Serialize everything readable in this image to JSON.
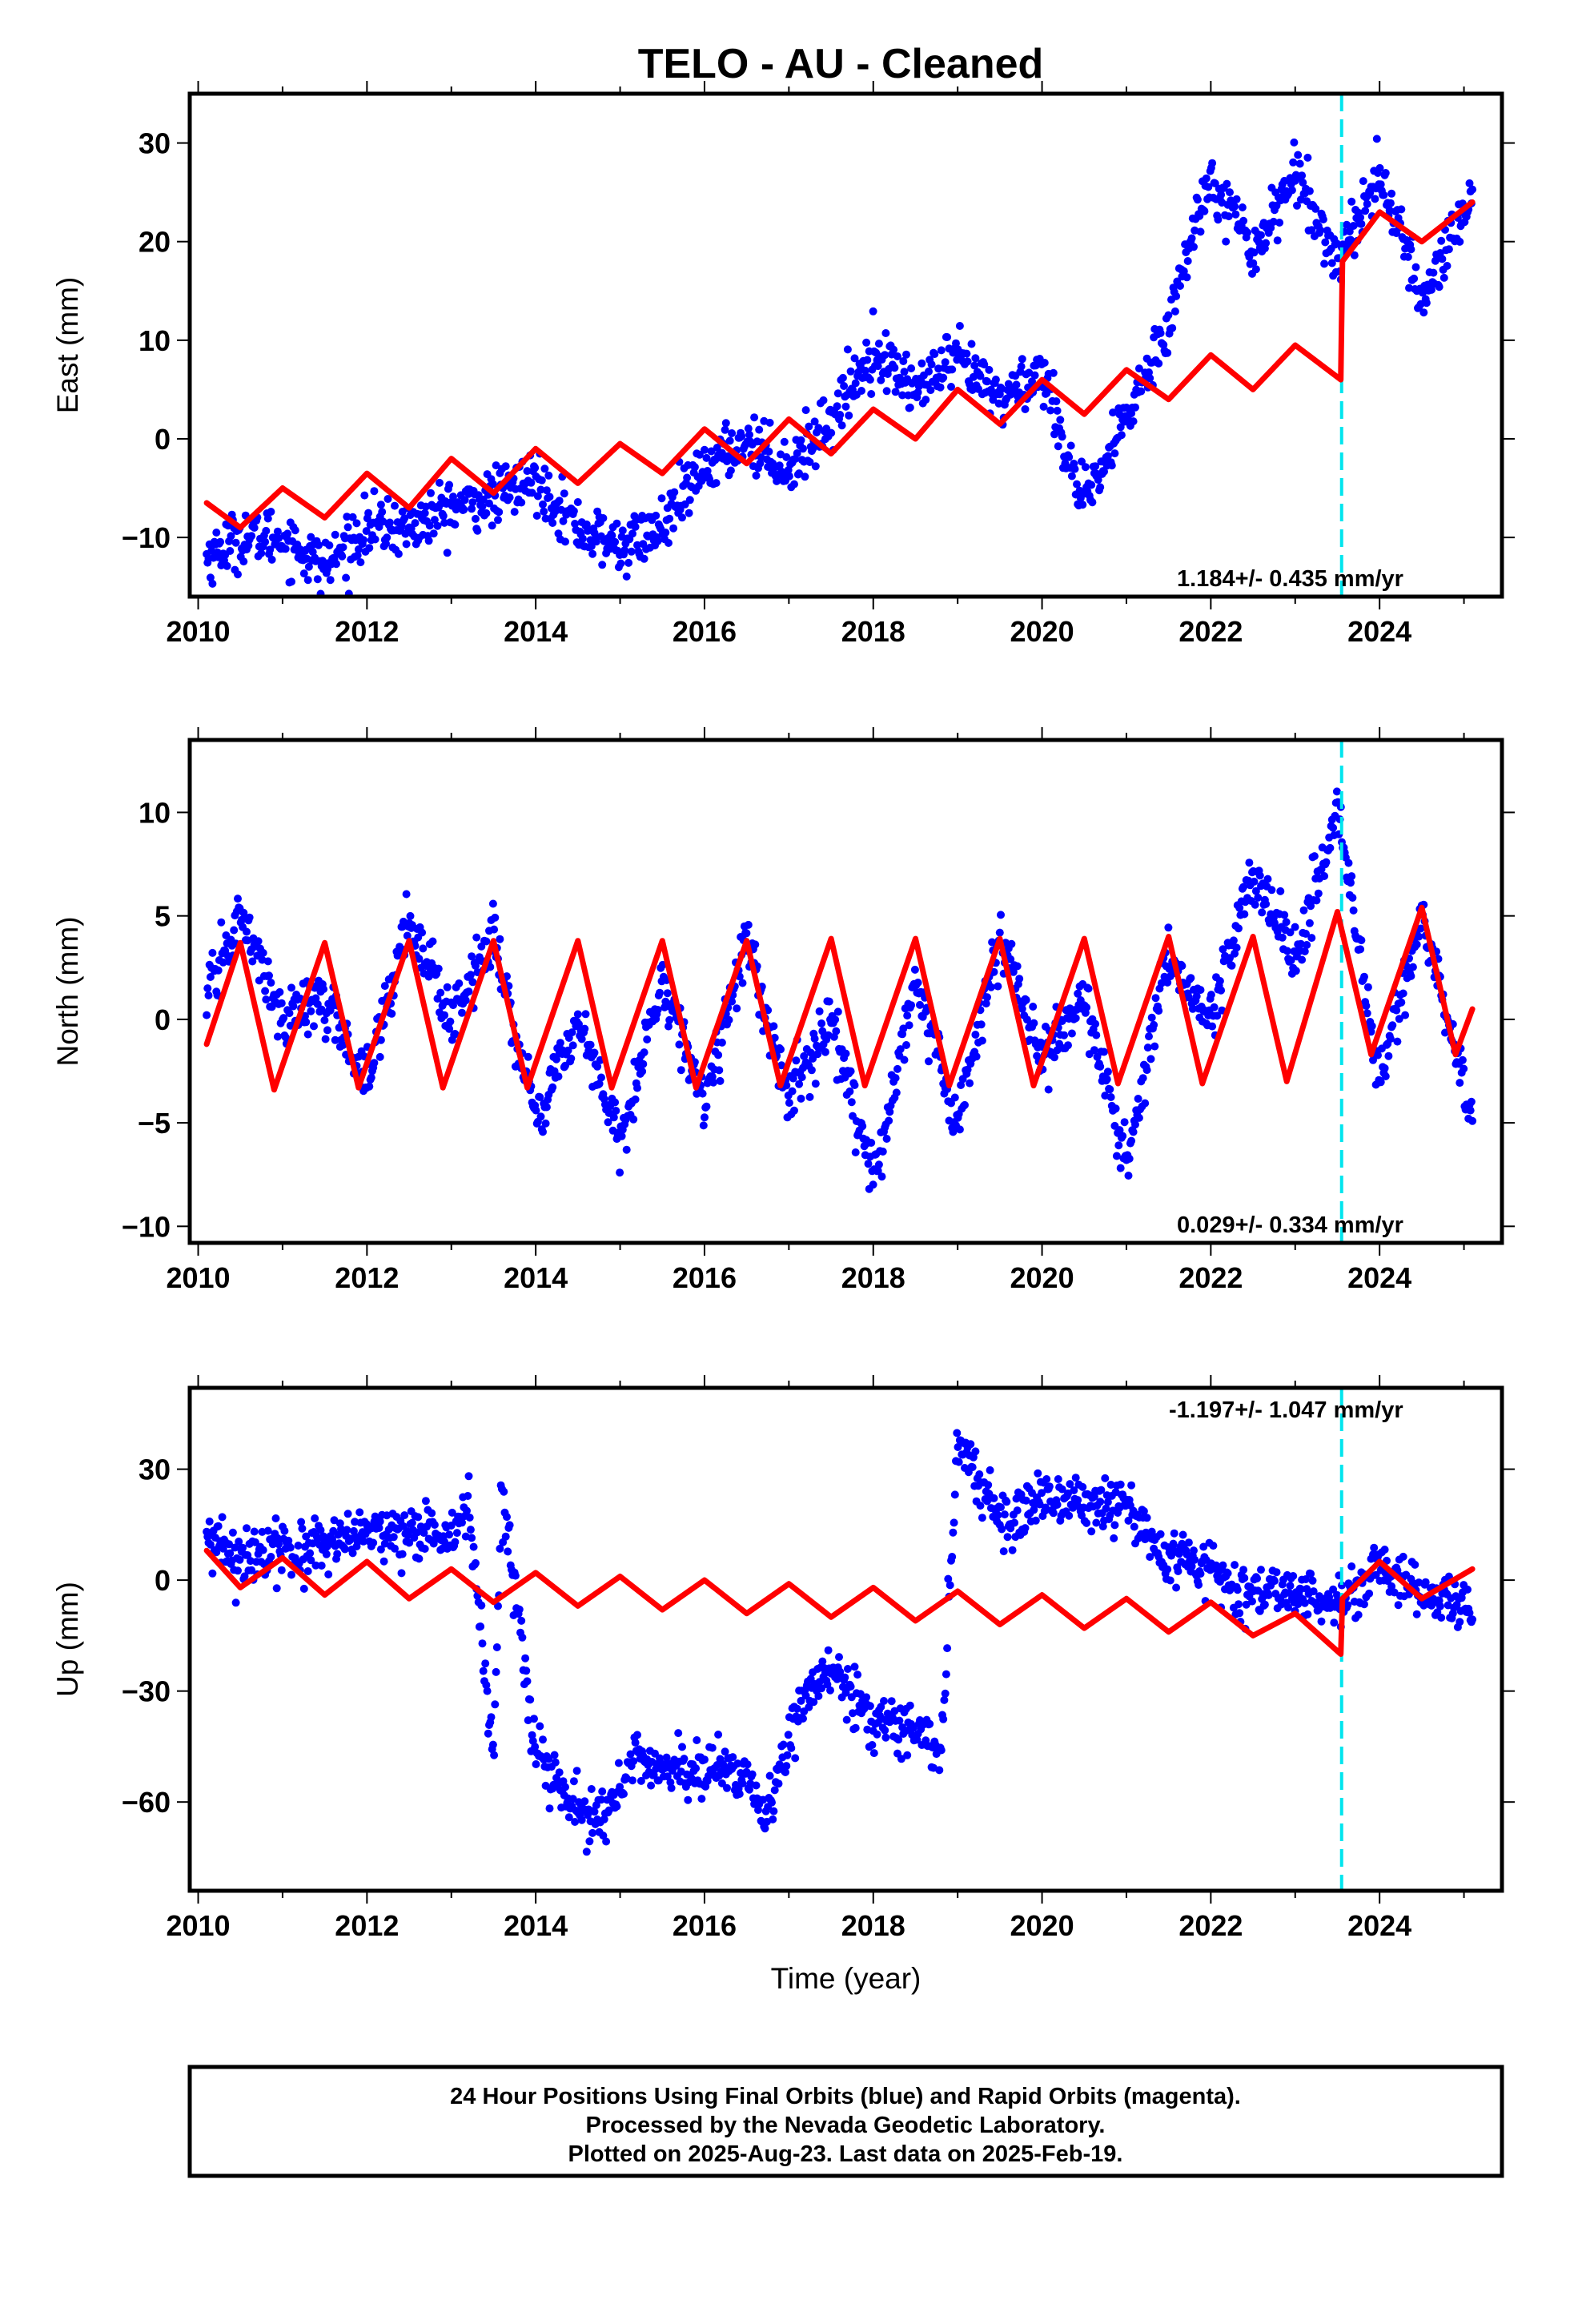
{
  "title": "TELO  - AU - Cleaned",
  "colors": {
    "final_orbits": "#0000ff",
    "model": "#ff0000",
    "event": "#00e5ee",
    "frame": "#000000"
  },
  "chart_data": [
    {
      "type": "scatter",
      "ylabel": "East (mm)",
      "xlabel": "",
      "rate_label": "1.184+/- 0.435 mm/yr",
      "xlim": [
        2009.9,
        2025.45
      ],
      "ylim": [
        -16,
        35
      ],
      "x_ticks": [
        "2010",
        "2012",
        "2014",
        "2016",
        "2018",
        "2020",
        "2022",
        "2024"
      ],
      "y_ticks": [
        "-10",
        "0",
        "10",
        "20",
        "30"
      ],
      "event_x": 2023.55,
      "series": [
        {
          "role": "observations",
          "x": [
            2010.1,
            2010.5,
            2011.0,
            2011.5,
            2012.0,
            2012.5,
            2013.0,
            2013.5,
            2014.0,
            2014.5,
            2015.0,
            2015.5,
            2016.0,
            2016.5,
            2017.0,
            2017.5,
            2018.0,
            2018.5,
            2019.0,
            2019.5,
            2020.0,
            2020.5,
            2021.0,
            2021.5,
            2022.0,
            2022.5,
            2023.0,
            2023.5,
            2024.0,
            2024.5,
            2025.1
          ],
          "y": [
            -12,
            -10,
            -10,
            -13,
            -9,
            -9,
            -7,
            -6,
            -4,
            -9,
            -11,
            -9,
            -3,
            0,
            -3,
            2,
            9,
            5,
            8,
            4,
            7,
            -7,
            2,
            12,
            27,
            19,
            27,
            18,
            27,
            14,
            25
          ]
        },
        {
          "role": "model",
          "x": [
            2010.1,
            2010.5,
            2011.0,
            2011.5,
            2012.0,
            2012.5,
            2013.0,
            2013.5,
            2014.0,
            2014.5,
            2015.0,
            2015.5,
            2016.0,
            2016.5,
            2017.0,
            2017.5,
            2018.0,
            2018.5,
            2019.0,
            2019.5,
            2020.0,
            2020.5,
            2021.0,
            2021.5,
            2022.0,
            2022.5,
            2023.0,
            2023.54,
            2023.56,
            2024.0,
            2024.5,
            2025.1
          ],
          "y": [
            -6.5,
            -9,
            -5,
            -8,
            -3.5,
            -7,
            -2,
            -5.5,
            -1,
            -4.5,
            -0.5,
            -3.5,
            1,
            -2.5,
            2,
            -1.5,
            3,
            0,
            5,
            1.5,
            6,
            2.5,
            7,
            4,
            8.5,
            5,
            9.5,
            6,
            18,
            23,
            20,
            24
          ]
        }
      ]
    },
    {
      "type": "scatter",
      "ylabel": "North (mm)",
      "xlabel": "",
      "rate_label": "0.029+/- 0.334 mm/yr",
      "xlim": [
        2009.9,
        2025.45
      ],
      "ylim": [
        -10.8,
        13.5
      ],
      "x_ticks": [
        "2010",
        "2012",
        "2014",
        "2016",
        "2018",
        "2020",
        "2022",
        "2024"
      ],
      "y_ticks": [
        "-10",
        "-5",
        "0",
        "5",
        "10"
      ],
      "event_x": 2023.55,
      "series": [
        {
          "role": "observations",
          "x": [
            2010.1,
            2010.5,
            2011.0,
            2011.5,
            2012.0,
            2012.5,
            2013.0,
            2013.5,
            2014.0,
            2014.5,
            2015.0,
            2015.5,
            2016.0,
            2016.5,
            2017.0,
            2017.5,
            2018.0,
            2018.5,
            2019.0,
            2019.5,
            2020.0,
            2020.5,
            2021.0,
            2021.5,
            2022.0,
            2022.5,
            2023.0,
            2023.5,
            2024.0,
            2024.5,
            2025.1
          ],
          "y": [
            1,
            5,
            0,
            1,
            -3,
            5,
            0,
            4,
            -5,
            0,
            -6,
            2,
            -4,
            4,
            -4,
            0,
            -8,
            2,
            -5,
            4,
            -2,
            1,
            -7,
            3,
            0,
            7,
            3,
            10,
            -3,
            5,
            -5
          ]
        },
        {
          "role": "model",
          "x": [
            2010.1,
            2010.5,
            2010.9,
            2011.5,
            2011.9,
            2012.5,
            2012.9,
            2013.5,
            2013.9,
            2014.5,
            2014.9,
            2015.5,
            2015.9,
            2016.5,
            2016.9,
            2017.5,
            2017.9,
            2018.5,
            2018.9,
            2019.5,
            2019.9,
            2020.5,
            2020.9,
            2021.5,
            2021.9,
            2022.5,
            2022.9,
            2023.5,
            2023.9,
            2024.5,
            2024.9,
            2025.1
          ],
          "y": [
            -1.2,
            3.7,
            -3.4,
            3.7,
            -3.3,
            3.8,
            -3.3,
            3.8,
            -3.3,
            3.8,
            -3.3,
            3.8,
            -3.3,
            3.8,
            -3.2,
            3.9,
            -3.2,
            3.9,
            -3.2,
            3.9,
            -3.2,
            3.9,
            -3.1,
            4.0,
            -3.1,
            4.0,
            -3.0,
            5.2,
            -1.7,
            5.4,
            -1.7,
            0.5
          ]
        }
      ]
    },
    {
      "type": "scatter",
      "ylabel": "Up (mm)",
      "xlabel": "Time (year)",
      "rate_label": "-1.197+/- 1.047 mm/yr",
      "xlim": [
        2009.9,
        2025.45
      ],
      "ylim": [
        -84,
        52
      ],
      "x_ticks": [
        "2010",
        "2012",
        "2014",
        "2016",
        "2018",
        "2020",
        "2022",
        "2024"
      ],
      "y_ticks": [
        "-60",
        "-30",
        "0",
        "30"
      ],
      "event_x": 2023.55,
      "series": [
        {
          "role": "observations",
          "x": [
            2010.1,
            2010.5,
            2011.0,
            2011.5,
            2012.0,
            2012.5,
            2013.0,
            2013.2,
            2013.5,
            2013.6,
            2014.0,
            2014.5,
            2014.8,
            2015.2,
            2015.5,
            2016.0,
            2016.5,
            2016.7,
            2017.2,
            2017.5,
            2018.0,
            2018.5,
            2018.8,
            2019.0,
            2019.5,
            2020.0,
            2020.5,
            2021.0,
            2021.5,
            2022.0,
            2022.5,
            2023.0,
            2023.5,
            2024.0,
            2024.5,
            2025.1
          ],
          "y": [
            10,
            7,
            8,
            8,
            13,
            12,
            12,
            22,
            -50,
            25,
            -48,
            -63,
            -65,
            -48,
            -50,
            -52,
            -52,
            -65,
            -30,
            -25,
            -38,
            -40,
            -47,
            38,
            17,
            22,
            20,
            20,
            5,
            2,
            -5,
            -3,
            -5,
            2,
            -3,
            -5
          ]
        },
        {
          "role": "model",
          "x": [
            2010.1,
            2010.5,
            2011.0,
            2011.5,
            2012.0,
            2012.5,
            2013.0,
            2013.5,
            2014.0,
            2014.5,
            2015.0,
            2015.5,
            2016.0,
            2016.5,
            2017.0,
            2017.5,
            2018.0,
            2018.5,
            2019.0,
            2019.5,
            2020.0,
            2020.5,
            2021.0,
            2021.5,
            2022.0,
            2022.5,
            2023.0,
            2023.54,
            2023.56,
            2024.0,
            2024.5,
            2025.1
          ],
          "y": [
            8,
            -2,
            6,
            -4,
            5,
            -5,
            3,
            -6,
            2,
            -7,
            1,
            -8,
            0,
            -9,
            -1,
            -10,
            -2,
            -11,
            -3,
            -12,
            -4,
            -13,
            -5,
            -14,
            -6,
            -15,
            -9,
            -20,
            -5,
            5,
            -5,
            3
          ]
        }
      ]
    }
  ],
  "footer": {
    "line1": "24 Hour Positions Using Final Orbits (blue) and Rapid Orbits (magenta).",
    "line2": "Processed by the Nevada Geodetic Laboratory.",
    "line3": "Plotted on 2025-Aug-23. Last data on 2025-Feb-19."
  }
}
